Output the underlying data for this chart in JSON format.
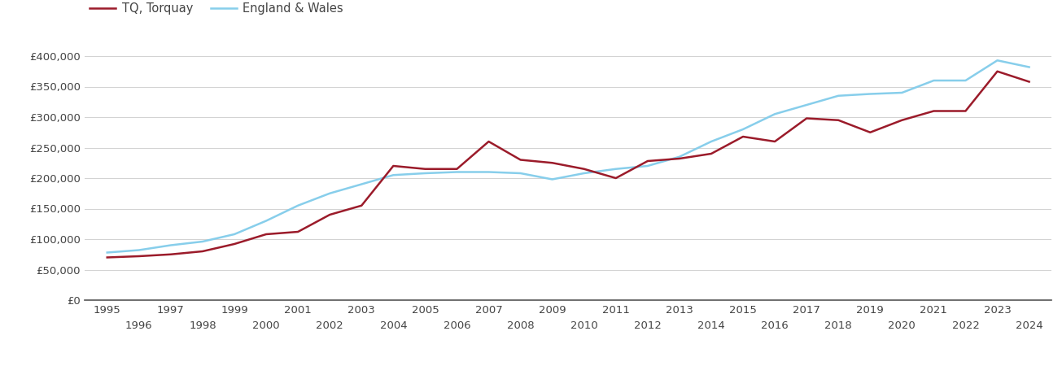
{
  "torquay": {
    "years": [
      1995,
      1996,
      1997,
      1998,
      1999,
      2000,
      2001,
      2002,
      2003,
      2004,
      2005,
      2006,
      2007,
      2008,
      2009,
      2010,
      2011,
      2012,
      2013,
      2014,
      2015,
      2016,
      2017,
      2018,
      2019,
      2020,
      2021,
      2022,
      2023,
      2024
    ],
    "values": [
      70000,
      72000,
      75000,
      80000,
      92000,
      108000,
      112000,
      140000,
      155000,
      220000,
      215000,
      215000,
      260000,
      230000,
      225000,
      215000,
      200000,
      228000,
      232000,
      240000,
      268000,
      260000,
      298000,
      295000,
      275000,
      295000,
      310000,
      310000,
      375000,
      358000
    ]
  },
  "england_wales": {
    "years": [
      1995,
      1996,
      1997,
      1998,
      1999,
      2000,
      2001,
      2002,
      2003,
      2004,
      2005,
      2006,
      2007,
      2008,
      2009,
      2010,
      2011,
      2012,
      2013,
      2014,
      2015,
      2016,
      2017,
      2018,
      2019,
      2020,
      2021,
      2022,
      2023,
      2024
    ],
    "values": [
      78000,
      82000,
      90000,
      96000,
      108000,
      130000,
      155000,
      175000,
      190000,
      205000,
      208000,
      210000,
      210000,
      208000,
      198000,
      208000,
      215000,
      220000,
      235000,
      260000,
      280000,
      305000,
      320000,
      335000,
      338000,
      340000,
      360000,
      360000,
      393000,
      382000
    ]
  },
  "torquay_color": "#9b1b2a",
  "ew_color": "#87ceeb",
  "torquay_label": "TQ, Torquay",
  "ew_label": "England & Wales",
  "ylim": [
    0,
    420000
  ],
  "yticks": [
    0,
    50000,
    100000,
    150000,
    200000,
    250000,
    300000,
    350000,
    400000
  ],
  "ytick_labels": [
    "£0",
    "£50,000",
    "£100,000",
    "£150,000",
    "£200,000",
    "£250,000",
    "£300,000",
    "£350,000",
    "£400,000"
  ],
  "background_color": "#ffffff",
  "grid_color": "#d3d3d3",
  "line_width": 1.8,
  "legend_fontsize": 10.5,
  "tick_fontsize": 9.5,
  "tick_color": "#444444"
}
